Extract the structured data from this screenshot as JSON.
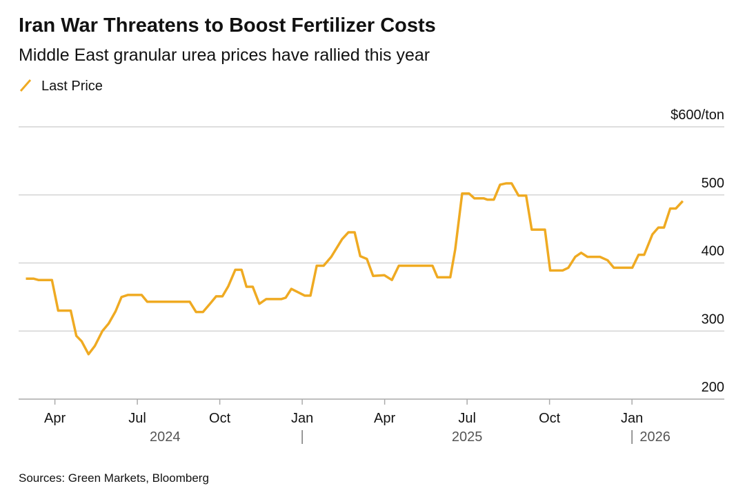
{
  "chart_data": {
    "type": "line",
    "title": "Iran War Threatens to Boost Fertilizer Costs",
    "subtitle": "Middle East granular urea prices have rallied this year",
    "source": "Sources: Green Markets, Bloomberg",
    "legend": "top-left",
    "grid": true,
    "x": [
      2024.162,
      2024.185,
      2024.2,
      2024.241,
      2024.26,
      2024.298,
      2024.315,
      2024.331,
      2024.352,
      2024.371,
      2024.394,
      2024.413,
      2024.434,
      2024.452,
      2024.471,
      2024.513,
      2024.53,
      2024.659,
      2024.678,
      2024.699,
      2024.722,
      2024.739,
      2024.758,
      2024.776,
      2024.797,
      2024.816,
      2024.831,
      2024.85,
      2024.87,
      2024.891,
      2024.937,
      2024.95,
      2024.967,
      2025.008,
      2025.025,
      2025.044,
      2025.065,
      2025.088,
      2025.121,
      2025.14,
      2025.159,
      2025.176,
      2025.196,
      2025.215,
      2025.249,
      2025.272,
      2025.293,
      2025.395,
      2025.41,
      2025.449,
      2025.464,
      2025.485,
      2025.506,
      2025.522,
      2025.55,
      2025.562,
      2025.581,
      2025.6,
      2025.619,
      2025.635,
      2025.656,
      2025.679,
      2025.696,
      2025.736,
      2025.752,
      2025.79,
      2025.807,
      2025.828,
      2025.846,
      2025.865,
      2025.903,
      2025.926,
      2025.945,
      2026.001,
      2026.02,
      2026.037,
      2026.062,
      2026.08,
      2026.097,
      2026.116,
      2026.133,
      2026.154
    ],
    "series": [
      {
        "name": "Last Price",
        "color": "#efaa22",
        "values": [
          377,
          377,
          375,
          375,
          330,
          330,
          293,
          285,
          266,
          278,
          300,
          311,
          329,
          350,
          353,
          353,
          343,
          343,
          328,
          328,
          341,
          351,
          351,
          366,
          390,
          390,
          365,
          365,
          340,
          347,
          347,
          349,
          362,
          352,
          352,
          396,
          396,
          409,
          435,
          445,
          445,
          410,
          406,
          381,
          382,
          375,
          396,
          396,
          379,
          379,
          420,
          502,
          502,
          495,
          495,
          493,
          493,
          515,
          517,
          517,
          499,
          499,
          449,
          449,
          389,
          389,
          393,
          409,
          415,
          409,
          409,
          404,
          393,
          393,
          412,
          412,
          442,
          452,
          452,
          480,
          480,
          491
        ]
      }
    ],
    "xlim": [
      2024.14,
      2026.28
    ],
    "xticks": [
      {
        "value": 2024.25,
        "label": "Apr"
      },
      {
        "value": 2024.5,
        "label": "Jul"
      },
      {
        "value": 2024.75,
        "label": "Oct"
      },
      {
        "value": 2025,
        "label": "Jan"
      },
      {
        "value": 2025.25,
        "label": "Apr"
      },
      {
        "value": 2025.5,
        "label": "Jul"
      },
      {
        "value": 2025.75,
        "label": "Oct"
      },
      {
        "value": 2026,
        "label": "Jan"
      }
    ],
    "x_year_labels": [
      {
        "value": 2024.584,
        "label": "2024"
      },
      {
        "value": 2025.5,
        "label": "2025"
      },
      {
        "value": 2026.07,
        "label": "2026"
      }
    ],
    "x_year_dividers": [
      2025,
      2026
    ],
    "ylim": [
      200,
      600
    ],
    "yticks": [
      200,
      300,
      400,
      500,
      {
        "value": 600,
        "label": "$600/ton"
      }
    ]
  }
}
